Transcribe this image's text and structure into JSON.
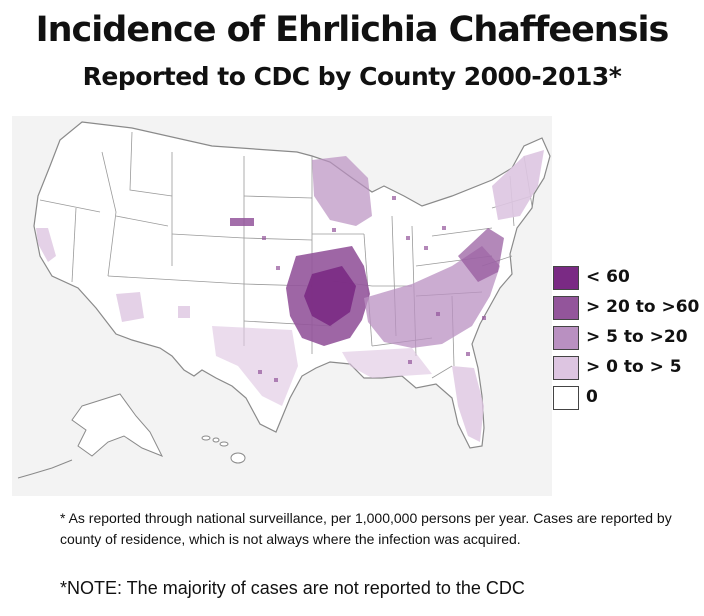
{
  "title": "Incidence of Ehrlichia Chaffeensis",
  "subtitle": "Reported to CDC by County 2000-2013*",
  "legend": [
    {
      "label": "< 60",
      "color": "#7a2a84"
    },
    {
      "label": "> 20 to >60",
      "color": "#93559b"
    },
    {
      "label": "> 5 to >20",
      "color": "#b990c1"
    },
    {
      "label": "> 0 to > 5",
      "color": "#ddc5e1"
    },
    {
      "label": "0",
      "color": "#ffffff"
    }
  ],
  "footnote": "* As reported through national surveillance, per 1,000,000 persons per year. Cases are reported by county of residence, which is not always where the infection was acquired.",
  "note": "*NOTE: The majority of cases are not reported to the CDC"
}
